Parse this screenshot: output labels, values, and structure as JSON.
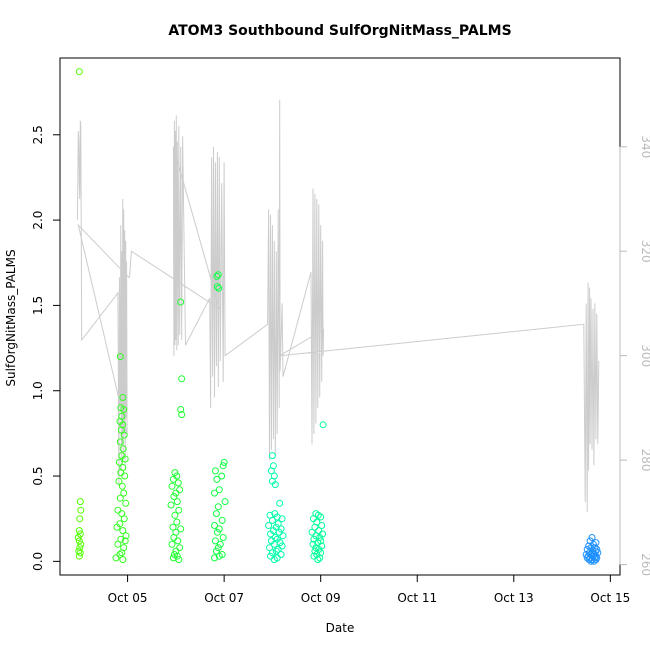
{
  "chart_data": {
    "type": "scatter",
    "title": "ATOM3 Southbound SulfOrgNitMass_PALMS",
    "xlabel": "Date",
    "ylabel": "SulfOrgNitMass_PALMS",
    "x_ticks": [
      {
        "day": 5,
        "label": "Oct 05"
      },
      {
        "day": 7,
        "label": "Oct 07"
      },
      {
        "day": 9,
        "label": "Oct 09"
      },
      {
        "day": 11,
        "label": "Oct 11"
      },
      {
        "day": 13,
        "label": "Oct 13"
      },
      {
        "day": 15,
        "label": "Oct 15"
      }
    ],
    "xlim": [
      3.6,
      15.2
    ],
    "ylim": [
      -0.08,
      2.95
    ],
    "y_ticks": [
      0.0,
      0.5,
      1.0,
      1.5,
      2.0,
      2.5
    ],
    "y_tick_labels": [
      "0.0",
      "0.5",
      "1.0",
      "1.5",
      "2.0",
      "2.5"
    ],
    "y2lim": [
      258,
      357
    ],
    "y2_ticks": [
      260,
      280,
      300,
      320,
      340
    ],
    "y2_tick_labels": [
      "260",
      "280",
      "300",
      "320",
      "340"
    ],
    "grid": false,
    "series": [
      {
        "color": "#55ff00",
        "points": [
          [
            4.0,
            2.87
          ],
          [
            4.02,
            0.35
          ],
          [
            4.03,
            0.3
          ],
          [
            4.01,
            0.25
          ],
          [
            4.0,
            0.18
          ],
          [
            4.02,
            0.16
          ],
          [
            3.98,
            0.14
          ],
          [
            4.0,
            0.12
          ],
          [
            4.03,
            0.1
          ],
          [
            4.01,
            0.08
          ],
          [
            3.99,
            0.06
          ],
          [
            4.02,
            0.05
          ],
          [
            4.0,
            0.03
          ]
        ]
      },
      {
        "color": "#33ff22",
        "points": [
          [
            4.85,
            1.2
          ],
          [
            4.9,
            0.96
          ],
          [
            4.86,
            0.9
          ],
          [
            4.92,
            0.89
          ],
          [
            4.88,
            0.85
          ],
          [
            4.84,
            0.82
          ],
          [
            4.9,
            0.8
          ],
          [
            4.87,
            0.77
          ],
          [
            4.93,
            0.74
          ],
          [
            4.85,
            0.7
          ],
          [
            4.91,
            0.66
          ],
          [
            4.88,
            0.62
          ],
          [
            4.95,
            0.6
          ],
          [
            4.83,
            0.58
          ],
          [
            4.9,
            0.55
          ],
          [
            4.86,
            0.52
          ],
          [
            4.94,
            0.5
          ],
          [
            4.82,
            0.47
          ],
          [
            4.89,
            0.44
          ],
          [
            4.92,
            0.4
          ],
          [
            4.85,
            0.37
          ],
          [
            4.96,
            0.34
          ],
          [
            4.8,
            0.3
          ],
          [
            4.88,
            0.28
          ],
          [
            4.93,
            0.25
          ],
          [
            4.84,
            0.22
          ],
          [
            4.78,
            0.2
          ],
          [
            4.9,
            0.18
          ],
          [
            4.97,
            0.15
          ],
          [
            4.86,
            0.13
          ],
          [
            4.95,
            0.12
          ],
          [
            4.8,
            0.1
          ],
          [
            4.92,
            0.08
          ],
          [
            4.88,
            0.05
          ],
          [
            4.84,
            0.04
          ],
          [
            4.76,
            0.02
          ],
          [
            4.9,
            0.01
          ]
        ]
      },
      {
        "color": "#22ff33",
        "points": [
          [
            6.1,
            1.52
          ],
          [
            6.12,
            1.07
          ],
          [
            6.1,
            0.89
          ],
          [
            6.12,
            0.86
          ],
          [
            5.98,
            0.52
          ],
          [
            6.02,
            0.5
          ],
          [
            5.95,
            0.48
          ],
          [
            6.05,
            0.46
          ],
          [
            5.92,
            0.44
          ],
          [
            6.08,
            0.42
          ],
          [
            6.0,
            0.4
          ],
          [
            5.96,
            0.38
          ],
          [
            6.03,
            0.35
          ],
          [
            5.9,
            0.33
          ],
          [
            6.06,
            0.3
          ],
          [
            5.98,
            0.27
          ],
          [
            6.02,
            0.23
          ],
          [
            5.94,
            0.2
          ],
          [
            6.1,
            0.19
          ],
          [
            6.0,
            0.17
          ],
          [
            5.96,
            0.14
          ],
          [
            6.04,
            0.12
          ],
          [
            5.92,
            0.1
          ],
          [
            6.08,
            0.08
          ],
          [
            6.0,
            0.06
          ],
          [
            5.97,
            0.04
          ],
          [
            6.03,
            0.03
          ],
          [
            5.95,
            0.02
          ],
          [
            6.06,
            0.01
          ]
        ]
      },
      {
        "color": "#11ff44",
        "points": [
          [
            6.85,
            1.67
          ],
          [
            6.88,
            1.68
          ],
          [
            6.86,
            1.61
          ],
          [
            6.89,
            1.6
          ],
          [
            7.0,
            0.58
          ],
          [
            6.98,
            0.56
          ],
          [
            6.82,
            0.53
          ],
          [
            6.95,
            0.5
          ],
          [
            6.85,
            0.48
          ],
          [
            6.9,
            0.42
          ],
          [
            6.8,
            0.4
          ],
          [
            7.02,
            0.35
          ],
          [
            6.88,
            0.32
          ],
          [
            6.84,
            0.28
          ],
          [
            6.96,
            0.24
          ],
          [
            6.8,
            0.21
          ],
          [
            6.9,
            0.19
          ],
          [
            6.86,
            0.17
          ],
          [
            6.98,
            0.14
          ],
          [
            6.82,
            0.12
          ],
          [
            6.92,
            0.1
          ],
          [
            6.88,
            0.08
          ],
          [
            6.84,
            0.06
          ],
          [
            6.96,
            0.04
          ],
          [
            6.9,
            0.03
          ],
          [
            6.8,
            0.02
          ]
        ]
      },
      {
        "color": "#00ffaa",
        "points": [
          [
            8.0,
            0.62
          ],
          [
            8.02,
            0.56
          ],
          [
            7.98,
            0.53
          ],
          [
            8.04,
            0.5
          ],
          [
            8.0,
            0.47
          ],
          [
            8.06,
            0.45
          ],
          [
            8.15,
            0.34
          ],
          [
            8.05,
            0.28
          ],
          [
            7.95,
            0.27
          ],
          [
            8.1,
            0.26
          ],
          [
            8.2,
            0.25
          ],
          [
            8.0,
            0.24
          ],
          [
            8.12,
            0.22
          ],
          [
            7.92,
            0.21
          ],
          [
            8.08,
            0.2
          ],
          [
            8.18,
            0.19
          ],
          [
            8.02,
            0.18
          ],
          [
            8.14,
            0.17
          ],
          [
            7.96,
            0.16
          ],
          [
            8.22,
            0.15
          ],
          [
            8.06,
            0.14
          ],
          [
            8.1,
            0.13
          ],
          [
            7.98,
            0.12
          ],
          [
            8.16,
            0.11
          ],
          [
            8.04,
            0.1
          ],
          [
            8.2,
            0.09
          ],
          [
            7.94,
            0.08
          ],
          [
            8.12,
            0.07
          ],
          [
            8.08,
            0.06
          ],
          [
            8.0,
            0.05
          ],
          [
            8.18,
            0.04
          ],
          [
            7.96,
            0.03
          ],
          [
            8.1,
            0.02
          ],
          [
            8.04,
            0.01
          ]
        ]
      },
      {
        "color": "#00ff99",
        "points": [
          [
            9.05,
            0.8
          ],
          [
            8.9,
            0.28
          ],
          [
            8.95,
            0.27
          ],
          [
            9.0,
            0.26
          ],
          [
            8.85,
            0.25
          ],
          [
            8.92,
            0.23
          ],
          [
            9.02,
            0.21
          ],
          [
            8.88,
            0.2
          ],
          [
            8.96,
            0.18
          ],
          [
            8.82,
            0.17
          ],
          [
            9.04,
            0.16
          ],
          [
            8.9,
            0.15
          ],
          [
            8.98,
            0.14
          ],
          [
            8.86,
            0.13
          ],
          [
            9.0,
            0.12
          ],
          [
            8.94,
            0.11
          ],
          [
            8.84,
            0.1
          ],
          [
            9.02,
            0.09
          ],
          [
            8.9,
            0.08
          ],
          [
            8.96,
            0.07
          ],
          [
            8.88,
            0.06
          ],
          [
            9.0,
            0.05
          ],
          [
            8.92,
            0.04
          ],
          [
            8.86,
            0.03
          ],
          [
            8.98,
            0.02
          ],
          [
            8.94,
            0.01
          ]
        ]
      },
      {
        "color": "#1e90ff",
        "points": [
          [
            14.62,
            0.14
          ],
          [
            14.58,
            0.12
          ],
          [
            14.7,
            0.11
          ],
          [
            14.65,
            0.1
          ],
          [
            14.55,
            0.09
          ],
          [
            14.68,
            0.08
          ],
          [
            14.6,
            0.08
          ],
          [
            14.72,
            0.07
          ],
          [
            14.52,
            0.07
          ],
          [
            14.64,
            0.06
          ],
          [
            14.7,
            0.06
          ],
          [
            14.56,
            0.05
          ],
          [
            14.62,
            0.05
          ],
          [
            14.74,
            0.05
          ],
          [
            14.5,
            0.04
          ],
          [
            14.66,
            0.04
          ],
          [
            14.6,
            0.04
          ],
          [
            14.7,
            0.03
          ],
          [
            14.54,
            0.03
          ],
          [
            14.64,
            0.03
          ],
          [
            14.58,
            0.02
          ],
          [
            14.72,
            0.02
          ],
          [
            14.52,
            0.02
          ],
          [
            14.68,
            0.02
          ],
          [
            14.62,
            0.01
          ],
          [
            14.56,
            0.01
          ],
          [
            14.7,
            0.01
          ],
          [
            14.6,
            0.0
          ],
          [
            14.66,
            0.0
          ]
        ]
      }
    ],
    "line_series": {
      "color": "#cccccc",
      "points": [
        [
          3.96,
          326
        ],
        [
          3.97,
          335
        ],
        [
          3.98,
          343
        ],
        [
          3.99,
          341
        ],
        [
          4.0,
          333
        ],
        [
          4.01,
          330
        ],
        [
          4.02,
          345
        ],
        [
          4.03,
          344
        ],
        [
          4.05,
          303
        ],
        [
          4.8,
          312
        ],
        [
          4.82,
          275
        ],
        [
          4.83,
          315
        ],
        [
          4.85,
          290
        ],
        [
          4.86,
          325
        ],
        [
          4.87,
          278
        ],
        [
          4.88,
          320
        ],
        [
          4.89,
          283
        ],
        [
          4.9,
          330
        ],
        [
          4.91,
          280
        ],
        [
          4.92,
          328
        ],
        [
          4.93,
          285
        ],
        [
          4.94,
          324
        ],
        [
          4.95,
          279
        ],
        [
          4.96,
          322
        ],
        [
          4.97,
          288
        ],
        [
          4.98,
          318
        ],
        [
          4.99,
          285
        ],
        [
          3.98,
          325
        ],
        [
          5.02,
          315
        ],
        [
          5.04,
          315
        ],
        [
          5.08,
          320
        ],
        [
          6.9,
          309
        ],
        [
          5.95,
          340
        ],
        [
          5.96,
          300
        ],
        [
          5.97,
          345
        ],
        [
          5.98,
          302
        ],
        [
          5.99,
          343
        ],
        [
          6.0,
          303
        ],
        [
          6.01,
          346
        ],
        [
          6.02,
          301
        ],
        [
          6.03,
          341
        ],
        [
          6.05,
          302
        ],
        [
          6.06,
          344
        ],
        [
          6.08,
          304
        ],
        [
          6.1,
          340
        ],
        [
          6.12,
          303
        ],
        [
          6.14,
          342
        ],
        [
          6.2,
          302
        ],
        [
          6.7,
          311
        ],
        [
          6.72,
          290
        ],
        [
          6.74,
          338
        ],
        [
          6.76,
          296
        ],
        [
          6.78,
          340
        ],
        [
          6.8,
          292
        ],
        [
          6.82,
          337
        ],
        [
          6.84,
          298
        ],
        [
          6.86,
          339
        ],
        [
          6.88,
          294
        ],
        [
          6.9,
          338
        ],
        [
          6.92,
          299
        ],
        [
          6.95,
          333
        ],
        [
          6.98,
          295
        ],
        [
          7.0,
          337
        ],
        [
          7.02,
          300
        ],
        [
          7.9,
          306
        ],
        [
          7.92,
          328
        ],
        [
          7.94,
          280
        ],
        [
          7.96,
          327
        ],
        [
          7.98,
          282
        ],
        [
          8.0,
          325
        ],
        [
          8.02,
          284
        ],
        [
          8.04,
          322
        ],
        [
          8.06,
          281
        ],
        [
          8.08,
          320
        ],
        [
          8.1,
          285
        ],
        [
          8.12,
          328
        ],
        [
          8.14,
          290
        ],
        [
          8.15,
          349
        ],
        [
          8.16,
          297
        ],
        [
          8.2,
          310
        ],
        [
          8.22,
          296
        ],
        [
          8.8,
          316
        ],
        [
          8.82,
          283
        ],
        [
          8.84,
          332
        ],
        [
          8.86,
          285
        ],
        [
          8.88,
          331
        ],
        [
          8.9,
          287
        ],
        [
          8.92,
          330
        ],
        [
          8.94,
          290
        ],
        [
          8.96,
          329
        ],
        [
          8.98,
          292
        ],
        [
          9.0,
          325
        ],
        [
          9.02,
          295
        ],
        [
          9.04,
          322
        ],
        [
          9.05,
          300
        ],
        [
          9.06,
          305
        ],
        [
          8.15,
          300
        ],
        [
          14.45,
          306
        ],
        [
          14.48,
          272
        ],
        [
          14.5,
          310
        ],
        [
          14.52,
          270
        ],
        [
          14.54,
          314
        ],
        [
          14.55,
          278
        ],
        [
          14.57,
          313
        ],
        [
          14.58,
          283
        ],
        [
          14.6,
          311
        ],
        [
          14.62,
          282
        ],
        [
          14.64,
          309
        ],
        [
          14.66,
          279
        ],
        [
          14.68,
          310
        ],
        [
          14.7,
          284
        ],
        [
          14.72,
          308
        ],
        [
          14.74,
          283
        ],
        [
          14.76,
          299
        ]
      ]
    }
  }
}
